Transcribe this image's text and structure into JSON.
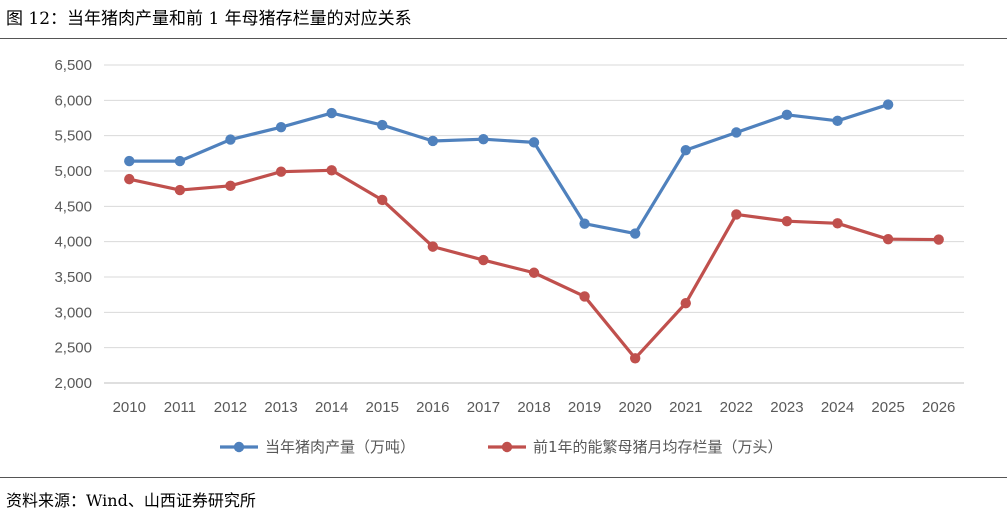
{
  "figure": {
    "title": "图 12：当年猪肉产量和前 1 年母猪存栏量的对应关系",
    "source": "资料来源：Wind、山西证券研究所"
  },
  "chart_data": {
    "type": "line",
    "x": [
      "2010",
      "2011",
      "2012",
      "2013",
      "2014",
      "2015",
      "2016",
      "2017",
      "2018",
      "2019",
      "2020",
      "2021",
      "2022",
      "2023",
      "2024",
      "2025",
      "2026"
    ],
    "ylim": [
      2000,
      6500
    ],
    "yticks": [
      "2,000",
      "2,500",
      "3,000",
      "3,500",
      "4,000",
      "4,500",
      "5,000",
      "5,500",
      "6,000",
      "6,500"
    ],
    "grid": true,
    "legend_position": "bottom",
    "series": [
      {
        "name": "当年猪肉产量（万吨）",
        "color": "#4F81BD",
        "values": [
          5140,
          5140,
          5445,
          5620,
          5820,
          5650,
          5425,
          5450,
          5405,
          4255,
          4115,
          5295,
          5545,
          5795,
          5710,
          5940,
          null
        ]
      },
      {
        "name": "前1年的能繁母猪月均存栏量（万头）",
        "color": "#C0504D",
        "values": [
          4885,
          4730,
          4790,
          4990,
          5010,
          4590,
          3930,
          3740,
          3560,
          3225,
          2350,
          3130,
          4385,
          4290,
          4260,
          4035,
          4030
        ]
      }
    ]
  }
}
